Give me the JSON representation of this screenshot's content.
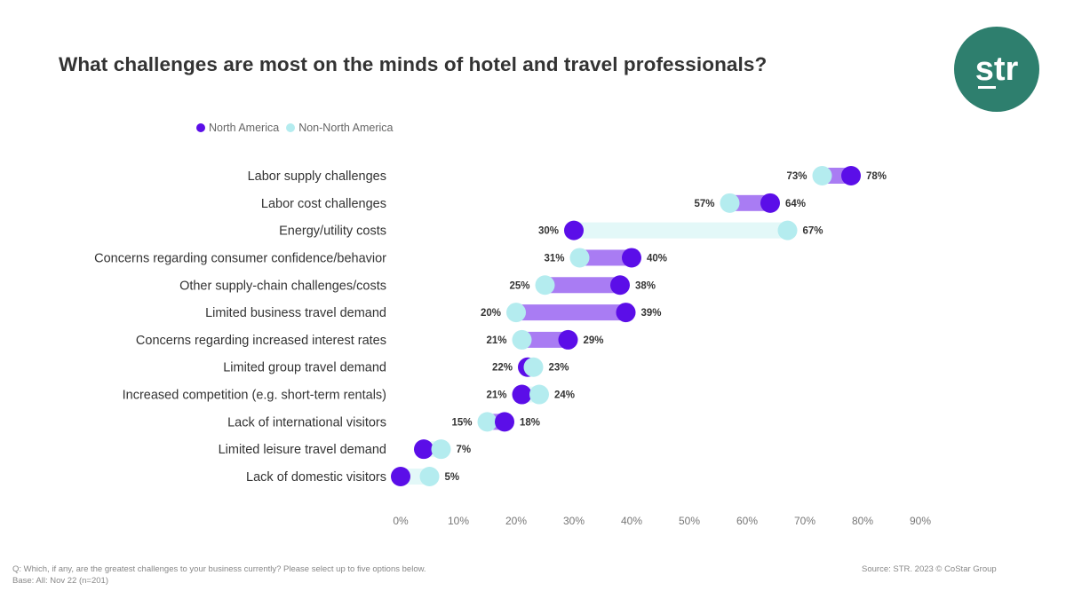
{
  "chart_data": {
    "type": "dumbbell",
    "title": "What challenges are most on the minds of hotel and travel professionals?",
    "categories": [
      "Labor supply challenges",
      "Labor cost challenges",
      "Energy/utility costs",
      "Concerns regarding consumer confidence/behavior",
      "Other supply-chain challenges/costs",
      "Limited business travel demand",
      "Concerns regarding increased interest rates",
      "Limited group travel demand",
      "Increased competition (e.g. short-term rentals)",
      "Lack of international visitors",
      "Limited leisure travel demand",
      "Lack of domestic visitors"
    ],
    "series": [
      {
        "name": "North America",
        "color": "#5b0ee8",
        "values": [
          78,
          64,
          30,
          40,
          38,
          39,
          29,
          22,
          21,
          18,
          4,
          0
        ],
        "labels": [
          "78%",
          "64%",
          "30%",
          "40%",
          "38%",
          "39%",
          "29%",
          "22%",
          "21%",
          "18%",
          null,
          null
        ]
      },
      {
        "name": "Non-North America",
        "color": "#b4ecef",
        "values": [
          73,
          57,
          67,
          31,
          25,
          20,
          21,
          23,
          24,
          15,
          7,
          5
        ],
        "labels": [
          "73%",
          "57%",
          "67%",
          "31%",
          "25%",
          "20%",
          "21%",
          "23%",
          "24%",
          "15%",
          "7%",
          "5%"
        ]
      }
    ],
    "bar_colors": {
      "north_america_higher": "#a97cf3",
      "non_north_america_higher": "#e3f8f8"
    },
    "xlim": [
      0,
      90
    ],
    "xticks": [
      "0%",
      "10%",
      "20%",
      "30%",
      "40%",
      "50%",
      "60%",
      "70%",
      "80%",
      "90%"
    ],
    "xtick_values": [
      0,
      10,
      20,
      30,
      40,
      50,
      60,
      70,
      80,
      90
    ],
    "legend": "top-left",
    "grid": false
  },
  "logo": {
    "text": "str",
    "color": "#2e7f6e"
  },
  "footer": {
    "question": "Q: Which, if any, are the greatest challenges to your business currently? Please select up to five options below.",
    "base": "Base: All: Nov 22 (n=201)",
    "source": "Source: STR. 2023 © CoStar Group"
  }
}
